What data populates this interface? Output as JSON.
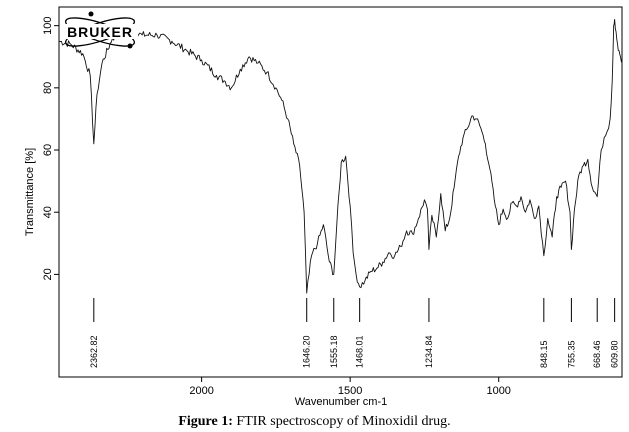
{
  "logo": {
    "text": "BRUKER"
  },
  "caption": {
    "prefix": "Figure 1:",
    "text": "FTIR spectroscopy of Minoxidil drug."
  },
  "chart_data": {
    "type": "line",
    "xlabel": "Wavenumber cm-1",
    "ylabel": "Transmittance [%]",
    "x_reversed": true,
    "xlim": [
      2480,
      585
    ],
    "ylim": [
      -13,
      106
    ],
    "x_ticks": [
      2000,
      1500,
      1000
    ],
    "y_ticks": [
      20,
      40,
      60,
      80,
      100
    ],
    "grid": false,
    "legend": "none",
    "peaks": [
      {
        "x": 2362.82,
        "label": "2362.82"
      },
      {
        "x": 1646.2,
        "label": "1646.20"
      },
      {
        "x": 1555.18,
        "label": "1555.18"
      },
      {
        "x": 1468.01,
        "label": "1468.01"
      },
      {
        "x": 1234.84,
        "label": "1234.84"
      },
      {
        "x": 848.15,
        "label": "848.15"
      },
      {
        "x": 755.35,
        "label": "755.35"
      },
      {
        "x": 668.46,
        "label": "668.46"
      },
      {
        "x": 609.8,
        "label": "609.80"
      }
    ],
    "series": [
      {
        "x": [
          2480,
          2440,
          2400,
          2375,
          2362.82,
          2352,
          2335,
          2300,
          2250,
          2200,
          2150,
          2100,
          2050,
          2000,
          1950,
          1920,
          1900,
          1870,
          1840,
          1810,
          1780,
          1750,
          1730,
          1710,
          1690,
          1670,
          1655,
          1646.2,
          1630,
          1610,
          1590,
          1570,
          1555.18,
          1545,
          1530,
          1515,
          1500,
          1490,
          1480,
          1468.01,
          1450,
          1430,
          1410,
          1390,
          1370,
          1350,
          1330,
          1310,
          1290,
          1270,
          1250,
          1240,
          1234.84,
          1225,
          1210,
          1195,
          1180,
          1165,
          1150,
          1135,
          1120,
          1105,
          1090,
          1075,
          1060,
          1045,
          1030,
          1015,
          1000,
          985,
          970,
          955,
          940,
          925,
          910,
          895,
          880,
          865,
          848.15,
          835,
          820,
          805,
          790,
          775,
          760,
          755.35,
          745,
          730,
          715,
          700,
          685,
          668.46,
          655,
          645,
          635,
          625,
          618,
          613,
          609.8,
          605,
          600,
          595,
          590,
          585
        ],
        "y": [
          95,
          94,
          91,
          84,
          62,
          78,
          88,
          96,
          98,
          97,
          97,
          95,
          92,
          89,
          84,
          82,
          80,
          86,
          90,
          88,
          85,
          80,
          76,
          70,
          62,
          55,
          40,
          14,
          26,
          30,
          36,
          24,
          20,
          36,
          56,
          58,
          42,
          27,
          20,
          16,
          18,
          21,
          22,
          24,
          27,
          26,
          29,
          34,
          33,
          38,
          44,
          41,
          28,
          39,
          32,
          46,
          34,
          38,
          48,
          58,
          64,
          67,
          71,
          70,
          67,
          62,
          54,
          44,
          36,
          41,
          38,
          43,
          42,
          45,
          40,
          44,
          38,
          42,
          26,
          38,
          32,
          45,
          48,
          50,
          40,
          28,
          41,
          52,
          55,
          57,
          48,
          45,
          60,
          64,
          66,
          70,
          82,
          100,
          102,
          98,
          94,
          92,
          90,
          88
        ]
      }
    ]
  }
}
